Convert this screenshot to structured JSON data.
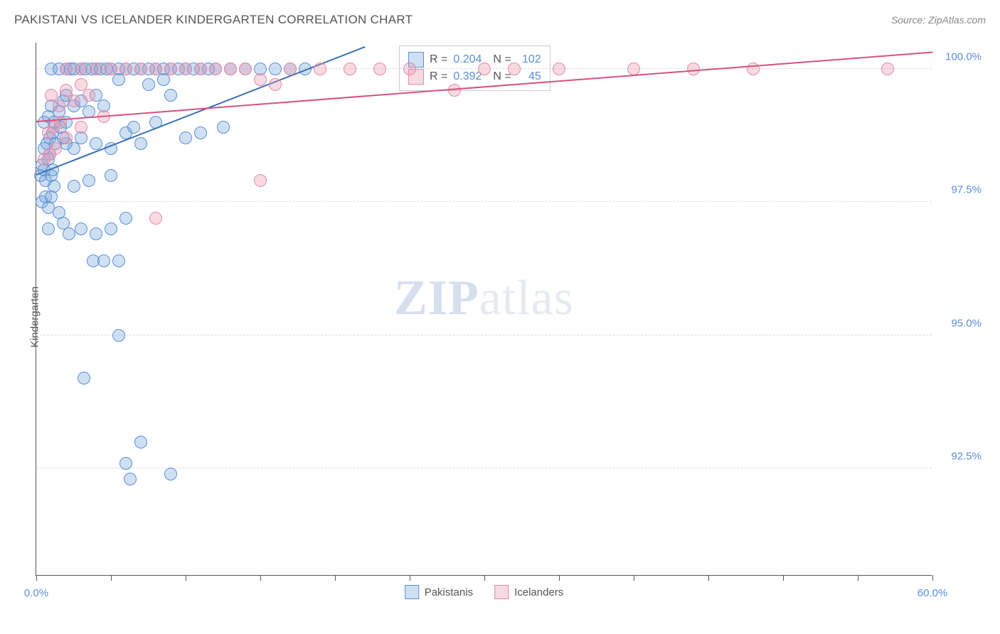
{
  "title": "PAKISTANI VS ICELANDER KINDERGARTEN CORRELATION CHART",
  "source": "Source: ZipAtlas.com",
  "ylabel": "Kindergarten",
  "watermark_zip": "ZIP",
  "watermark_atlas": "atlas",
  "chart": {
    "type": "scatter",
    "xlim": [
      0,
      60
    ],
    "ylim": [
      90.5,
      100.5
    ],
    "xticks": [
      0,
      5,
      10,
      15,
      20,
      25,
      30,
      35,
      40,
      45,
      50,
      55,
      60
    ],
    "xtick_labels": {
      "0": "0.0%",
      "60": "60.0%"
    },
    "yticks": [
      92.5,
      95.0,
      97.5,
      100.0
    ],
    "ytick_labels": [
      "92.5%",
      "95.0%",
      "97.5%",
      "100.0%"
    ],
    "grid_color": "#dddddd",
    "axis_color": "#555555",
    "background": "#ffffff",
    "marker_radius": 9,
    "series": [
      {
        "name": "Pakistanis",
        "fill": "rgba(120,165,220,0.35)",
        "stroke": "#5a8fd6",
        "R": "0.204",
        "N": "102",
        "trend": {
          "x1": 0,
          "y1": 98.0,
          "x2": 22,
          "y2": 100.4,
          "color": "#3a6fb6"
        },
        "points": [
          [
            0.3,
            98.0
          ],
          [
            0.4,
            98.2
          ],
          [
            0.5,
            98.1
          ],
          [
            0.6,
            97.9
          ],
          [
            0.8,
            98.3
          ],
          [
            0.9,
            98.4
          ],
          [
            1.0,
            98.0
          ],
          [
            1.1,
            98.1
          ],
          [
            1.2,
            97.8
          ],
          [
            0.5,
            99.0
          ],
          [
            0.8,
            99.1
          ],
          [
            1.0,
            99.3
          ],
          [
            1.2,
            99.0
          ],
          [
            1.5,
            99.2
          ],
          [
            1.8,
            99.4
          ],
          [
            2.0,
            99.0
          ],
          [
            1.0,
            100.0
          ],
          [
            1.5,
            100.0
          ],
          [
            2.0,
            100.0
          ],
          [
            2.3,
            100.0
          ],
          [
            2.5,
            100.0
          ],
          [
            3.0,
            100.0
          ],
          [
            3.3,
            100.0
          ],
          [
            3.7,
            100.0
          ],
          [
            4.0,
            100.0
          ],
          [
            4.3,
            100.0
          ],
          [
            4.7,
            100.0
          ],
          [
            5.0,
            100.0
          ],
          [
            5.5,
            100.0
          ],
          [
            6.0,
            100.0
          ],
          [
            6.5,
            100.0
          ],
          [
            7.0,
            100.0
          ],
          [
            7.5,
            100.0
          ],
          [
            8.0,
            100.0
          ],
          [
            8.5,
            100.0
          ],
          [
            9.0,
            100.0
          ],
          [
            9.5,
            100.0
          ],
          [
            10.0,
            100.0
          ],
          [
            10.5,
            100.0
          ],
          [
            11.0,
            100.0
          ],
          [
            11.5,
            100.0
          ],
          [
            12.0,
            100.0
          ],
          [
            13.0,
            100.0
          ],
          [
            14.0,
            100.0
          ],
          [
            15.0,
            100.0
          ],
          [
            16.0,
            100.0
          ],
          [
            17.0,
            100.0
          ],
          [
            18.0,
            100.0
          ],
          [
            2.0,
            99.5
          ],
          [
            2.5,
            99.3
          ],
          [
            3.0,
            99.4
          ],
          [
            3.5,
            99.2
          ],
          [
            4.0,
            99.5
          ],
          [
            4.5,
            99.3
          ],
          [
            2.0,
            98.6
          ],
          [
            2.5,
            98.5
          ],
          [
            3.0,
            98.7
          ],
          [
            4.0,
            98.6
          ],
          [
            5.0,
            98.5
          ],
          [
            6.0,
            98.8
          ],
          [
            7.0,
            98.6
          ],
          [
            10.0,
            98.7
          ],
          [
            11.0,
            98.8
          ],
          [
            1.5,
            97.3
          ],
          [
            0.8,
            97.0
          ],
          [
            1.8,
            97.1
          ],
          [
            2.2,
            96.9
          ],
          [
            3.0,
            97.0
          ],
          [
            4.0,
            96.9
          ],
          [
            5.0,
            97.0
          ],
          [
            6.0,
            97.2
          ],
          [
            3.8,
            96.4
          ],
          [
            4.5,
            96.4
          ],
          [
            5.5,
            96.4
          ],
          [
            5.5,
            95.0
          ],
          [
            3.2,
            94.2
          ],
          [
            7.0,
            93.0
          ],
          [
            6.0,
            92.6
          ],
          [
            6.3,
            92.3
          ],
          [
            9.0,
            92.4
          ],
          [
            0.5,
            98.5
          ],
          [
            0.7,
            98.6
          ],
          [
            0.9,
            98.7
          ],
          [
            1.1,
            98.8
          ],
          [
            1.3,
            98.6
          ],
          [
            1.6,
            98.9
          ],
          [
            1.8,
            98.7
          ],
          [
            0.4,
            97.5
          ],
          [
            0.6,
            97.6
          ],
          [
            0.8,
            97.4
          ],
          [
            1.0,
            97.6
          ],
          [
            2.5,
            97.8
          ],
          [
            3.5,
            97.9
          ],
          [
            5.0,
            98.0
          ],
          [
            6.5,
            98.9
          ],
          [
            8.0,
            99.0
          ],
          [
            9.0,
            99.5
          ],
          [
            12.5,
            98.9
          ],
          [
            5.5,
            99.8
          ],
          [
            7.5,
            99.7
          ],
          [
            8.5,
            99.8
          ]
        ]
      },
      {
        "name": "Icelanders",
        "fill": "rgba(235,150,175,0.35)",
        "stroke": "#e38aa5",
        "R": "0.392",
        "N": "45",
        "trend": {
          "x1": 0,
          "y1": 99.0,
          "x2": 60,
          "y2": 100.3,
          "color": "#d6527a"
        },
        "points": [
          [
            1.0,
            99.5
          ],
          [
            1.5,
            99.3
          ],
          [
            2.0,
            99.6
          ],
          [
            2.5,
            99.4
          ],
          [
            3.0,
            99.7
          ],
          [
            3.5,
            99.5
          ],
          [
            0.8,
            98.8
          ],
          [
            1.2,
            98.9
          ],
          [
            1.6,
            99.0
          ],
          [
            2.0,
            98.7
          ],
          [
            2.0,
            100.0
          ],
          [
            3.0,
            100.0
          ],
          [
            4.0,
            100.0
          ],
          [
            5.0,
            100.0
          ],
          [
            6.0,
            100.0
          ],
          [
            7.0,
            100.0
          ],
          [
            8.0,
            100.0
          ],
          [
            9.0,
            100.0
          ],
          [
            10.0,
            100.0
          ],
          [
            11.0,
            100.0
          ],
          [
            12.0,
            100.0
          ],
          [
            13.0,
            100.0
          ],
          [
            14.0,
            100.0
          ],
          [
            15.0,
            99.8
          ],
          [
            16.0,
            99.7
          ],
          [
            17.0,
            100.0
          ],
          [
            19.0,
            100.0
          ],
          [
            21.0,
            100.0
          ],
          [
            23.0,
            100.0
          ],
          [
            25.0,
            100.0
          ],
          [
            28.0,
            99.6
          ],
          [
            30.0,
            100.0
          ],
          [
            32.0,
            100.0
          ],
          [
            35.0,
            100.0
          ],
          [
            40.0,
            100.0
          ],
          [
            44.0,
            100.0
          ],
          [
            48.0,
            100.0
          ],
          [
            57.0,
            100.0
          ],
          [
            8.0,
            97.2
          ],
          [
            15.0,
            97.9
          ],
          [
            0.5,
            98.3
          ],
          [
            0.9,
            98.4
          ],
          [
            1.3,
            98.5
          ],
          [
            3.0,
            98.9
          ],
          [
            4.5,
            99.1
          ]
        ]
      }
    ]
  },
  "top_legend_labels": {
    "R": "R =",
    "N": "N ="
  },
  "bottom_legend": [
    "Pakistanis",
    "Icelanders"
  ]
}
